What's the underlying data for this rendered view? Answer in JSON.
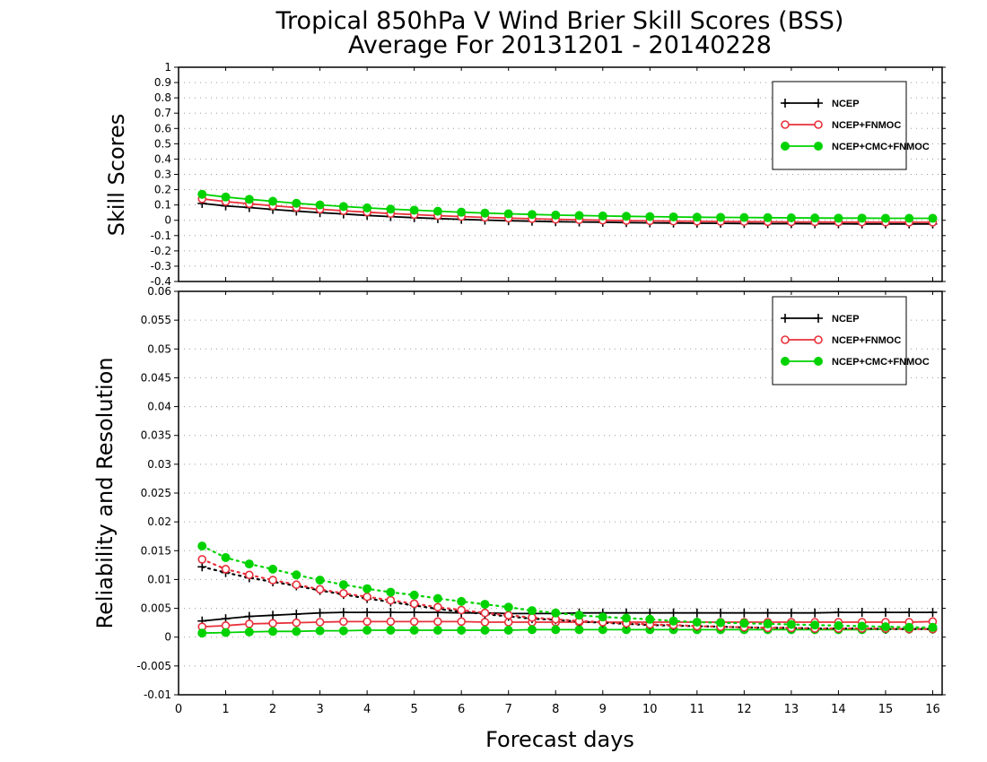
{
  "figure": {
    "title_line1": "Tropical 850hPa V Wind Brier Skill Scores (BSS)",
    "title_line2": "Average For 20131201 - 20140228",
    "xlabel": "Forecast days"
  },
  "colors": {
    "NCEP": "#000000",
    "NCEP+FNMOC": "#e8303a",
    "NCEP+CMC+FNMOC": "#00d200"
  },
  "chart_data": [
    {
      "type": "line",
      "ylabel": "Skill Scores",
      "ylim": [
        -0.4,
        1
      ],
      "yticks": [
        "-0.4",
        "-0.3",
        "-0.2",
        "-0.1",
        "0",
        "0.1",
        "0.2",
        "0.3",
        "0.4",
        "0.5",
        "0.6",
        "0.7",
        "0.8",
        "0.9",
        "1"
      ],
      "xlim": [
        0,
        16.2
      ],
      "xticks": [
        "0",
        "1",
        "2",
        "3",
        "4",
        "5",
        "6",
        "7",
        "8",
        "9",
        "10",
        "11",
        "12",
        "13",
        "14",
        "15",
        "16"
      ],
      "grid": true,
      "legend": {
        "placement": "top-right",
        "entries": [
          "NCEP",
          "NCEP+FNMOC",
          "NCEP+CMC+FNMOC"
        ]
      },
      "x": [
        0.5,
        1,
        1.5,
        2,
        2.5,
        3,
        3.5,
        4,
        4.5,
        5,
        5.5,
        6,
        6.5,
        7,
        7.5,
        8,
        8.5,
        9,
        9.5,
        10,
        10.5,
        11,
        11.5,
        12,
        12.5,
        13,
        13.5,
        14,
        14.5,
        15,
        15.5,
        16
      ],
      "series": [
        {
          "name": "NCEP",
          "marker": "plus",
          "style": "solid",
          "values": [
            0.11,
            0.094,
            0.083,
            0.071,
            0.06,
            0.05,
            0.041,
            0.032,
            0.024,
            0.017,
            0.011,
            0.006,
            0.001,
            -0.003,
            -0.006,
            -0.009,
            -0.011,
            -0.013,
            -0.015,
            -0.017,
            -0.018,
            -0.019,
            -0.02,
            -0.021,
            -0.022,
            -0.022,
            -0.023,
            -0.023,
            -0.024,
            -0.024,
            -0.024,
            -0.024
          ]
        },
        {
          "name": "NCEP+FNMOC",
          "marker": "open-circle",
          "style": "solid",
          "values": [
            0.14,
            0.122,
            0.108,
            0.095,
            0.083,
            0.072,
            0.062,
            0.053,
            0.044,
            0.037,
            0.03,
            0.024,
            0.019,
            0.014,
            0.01,
            0.006,
            0.003,
            0.0,
            -0.002,
            -0.004,
            -0.006,
            -0.007,
            -0.008,
            -0.009,
            -0.01,
            -0.011,
            -0.011,
            -0.012,
            -0.012,
            -0.013,
            -0.013,
            -0.013
          ]
        },
        {
          "name": "NCEP+CMC+FNMOC",
          "marker": "filled-circle",
          "style": "solid",
          "values": [
            0.17,
            0.152,
            0.137,
            0.124,
            0.111,
            0.1,
            0.09,
            0.081,
            0.073,
            0.066,
            0.059,
            0.053,
            0.047,
            0.042,
            0.038,
            0.034,
            0.031,
            0.028,
            0.026,
            0.024,
            0.022,
            0.02,
            0.019,
            0.018,
            0.017,
            0.016,
            0.015,
            0.014,
            0.014,
            0.013,
            0.013,
            0.013
          ]
        }
      ]
    },
    {
      "type": "line",
      "ylabel": "Reliability and Resolution",
      "ylim": [
        -0.01,
        0.06
      ],
      "yticks": [
        "-0.01",
        "-0.005",
        "0",
        "0.005",
        "0.01",
        "0.015",
        "0.02",
        "0.025",
        "0.03",
        "0.035",
        "0.04",
        "0.045",
        "0.05",
        "0.055",
        "0.06"
      ],
      "xlim": [
        0,
        16.2
      ],
      "xticks": [
        "0",
        "1",
        "2",
        "3",
        "4",
        "5",
        "6",
        "7",
        "8",
        "9",
        "10",
        "11",
        "12",
        "13",
        "14",
        "15",
        "16"
      ],
      "grid": true,
      "legend": {
        "placement": "top-right",
        "entries": [
          "NCEP",
          "NCEP+FNMOC",
          "NCEP+CMC+FNMOC"
        ]
      },
      "x": [
        0.5,
        1,
        1.5,
        2,
        2.5,
        3,
        3.5,
        4,
        4.5,
        5,
        5.5,
        6,
        6.5,
        7,
        7.5,
        8,
        8.5,
        9,
        9.5,
        10,
        10.5,
        11,
        11.5,
        12,
        12.5,
        13,
        13.5,
        14,
        14.5,
        15,
        15.5,
        16
      ],
      "series": [
        {
          "name": "NCEP",
          "group": "resolution",
          "marker": "plus",
          "style": "solid",
          "values": [
            0.0028,
            0.0032,
            0.0036,
            0.0038,
            0.004,
            0.0042,
            0.0043,
            0.0043,
            0.0043,
            0.0043,
            0.0043,
            0.0042,
            0.0042,
            0.0041,
            0.0041,
            0.0041,
            0.0042,
            0.0042,
            0.0042,
            0.0042,
            0.0042,
            0.0042,
            0.0042,
            0.0042,
            0.0042,
            0.0042,
            0.0042,
            0.0043,
            0.0043,
            0.0043,
            0.0043,
            0.0043
          ]
        },
        {
          "name": "NCEP+FNMOC",
          "group": "resolution",
          "marker": "open-circle",
          "style": "solid",
          "values": [
            0.0018,
            0.002,
            0.0023,
            0.0024,
            0.0025,
            0.0026,
            0.0027,
            0.0027,
            0.0027,
            0.0027,
            0.0027,
            0.0027,
            0.0026,
            0.0026,
            0.0026,
            0.0026,
            0.0026,
            0.0026,
            0.0026,
            0.0026,
            0.0026,
            0.0026,
            0.0026,
            0.0026,
            0.0026,
            0.0026,
            0.0026,
            0.0026,
            0.0026,
            0.0026,
            0.0026,
            0.0027
          ]
        },
        {
          "name": "NCEP+CMC+FNMOC",
          "group": "resolution",
          "marker": "filled-circle",
          "style": "solid",
          "values": [
            0.0007,
            0.0008,
            0.0009,
            0.001,
            0.001,
            0.0011,
            0.0011,
            0.0012,
            0.0012,
            0.0012,
            0.0012,
            0.0012,
            0.0012,
            0.0012,
            0.0013,
            0.0013,
            0.0013,
            0.0013,
            0.0013,
            0.0013,
            0.0013,
            0.0013,
            0.0013,
            0.0013,
            0.0013,
            0.0013,
            0.0013,
            0.0013,
            0.0013,
            0.0014,
            0.0014,
            0.0014
          ]
        },
        {
          "name": "NCEP",
          "group": "reliability",
          "marker": "plus",
          "style": "dotted",
          "values": [
            0.0122,
            0.0112,
            0.0103,
            0.0096,
            0.0089,
            0.0081,
            0.0074,
            0.0067,
            0.0061,
            0.0055,
            0.0049,
            0.0044,
            0.004,
            0.0036,
            0.0032,
            0.003,
            0.0027,
            0.0025,
            0.0023,
            0.0021,
            0.002,
            0.0019,
            0.0018,
            0.0017,
            0.0016,
            0.0016,
            0.0015,
            0.0015,
            0.0015,
            0.0014,
            0.0014,
            0.0014
          ]
        },
        {
          "name": "NCEP+FNMOC",
          "group": "reliability",
          "marker": "open-circle",
          "style": "dotted",
          "values": [
            0.0135,
            0.0118,
            0.0108,
            0.0099,
            0.0091,
            0.0083,
            0.0076,
            0.007,
            0.0064,
            0.0058,
            0.0052,
            0.0047,
            0.0042,
            0.0038,
            0.0034,
            0.0031,
            0.0028,
            0.0026,
            0.0024,
            0.0022,
            0.0021,
            0.0019,
            0.0018,
            0.0017,
            0.0016,
            0.0016,
            0.0015,
            0.0015,
            0.0015,
            0.0015,
            0.0014,
            0.0014
          ]
        },
        {
          "name": "NCEP+CMC+FNMOC",
          "group": "reliability",
          "marker": "filled-circle",
          "style": "dotted",
          "values": [
            0.0158,
            0.0138,
            0.0127,
            0.0118,
            0.0108,
            0.0099,
            0.0091,
            0.0084,
            0.0078,
            0.0073,
            0.0067,
            0.0062,
            0.0057,
            0.0052,
            0.0046,
            0.0042,
            0.0038,
            0.0035,
            0.0033,
            0.0031,
            0.0028,
            0.0026,
            0.0025,
            0.0024,
            0.0023,
            0.0022,
            0.0021,
            0.002,
            0.0019,
            0.0018,
            0.0017,
            0.0017
          ]
        }
      ]
    }
  ]
}
